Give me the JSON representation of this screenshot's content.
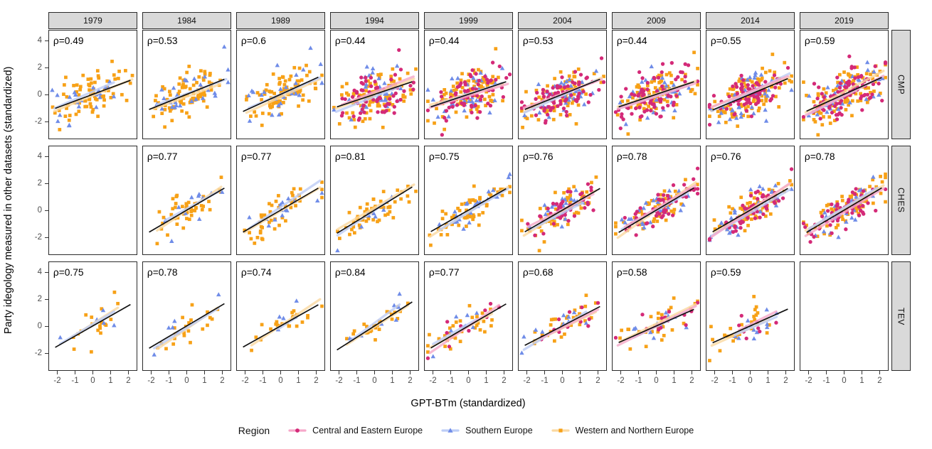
{
  "legend": {
    "title": "Region"
  },
  "chart_data": {
    "type": "scatter",
    "x_label": "GPT-BTm (standardized)",
    "y_label": "Party idegology measured in other datasets (standardized)",
    "x_ticks": [
      -2,
      -1,
      0,
      1,
      2
    ],
    "y_ticks": [
      4,
      2,
      0,
      -2
    ],
    "x_domain": [
      -2.5,
      2.5
    ],
    "y_domain": [
      -3.37,
      4.79
    ],
    "grid": "off",
    "facet_cols": [
      "1979",
      "1984",
      "1989",
      "1994",
      "1999",
      "2004",
      "2009",
      "2014",
      "2019"
    ],
    "facet_rows": [
      "CMP",
      "CHES",
      "TEV"
    ],
    "colors": {
      "fit_line": "#111111",
      "strip_bg": "#d9d9d9",
      "panel_border": "#2b2b2b",
      "tick_text": "#4d4d4d"
    },
    "regions": [
      {
        "id": "cee",
        "label": "Central and Eastern Europe",
        "shape": "circle",
        "color": "#d42a78",
        "light": "#f6a8c9"
      },
      {
        "id": "se",
        "label": "Southern Europe",
        "shape": "triangle",
        "color": "#6f8ce8",
        "light": "#bdcdf6"
      },
      {
        "id": "wne",
        "label": "Western and Northern Europe",
        "shape": "square",
        "color": "#f7a117",
        "light": "#fbd9a1"
      }
    ],
    "panels": [
      {
        "row": "CMP",
        "col": "1979",
        "rho": 0.49,
        "rho_label": "ρ=0.49",
        "n": {
          "cee": 0,
          "se": 22,
          "wne": 78
        }
      },
      {
        "row": "CMP",
        "col": "1984",
        "rho": 0.53,
        "rho_label": "ρ=0.53",
        "n": {
          "cee": 0,
          "se": 26,
          "wne": 88
        }
      },
      {
        "row": "CMP",
        "col": "1989",
        "rho": 0.6,
        "rho_label": "ρ=0.6",
        "n": {
          "cee": 0,
          "se": 26,
          "wne": 86
        }
      },
      {
        "row": "CMP",
        "col": "1994",
        "rho": 0.44,
        "rho_label": "ρ=0.44",
        "n": {
          "cee": 68,
          "se": 36,
          "wne": 96
        }
      },
      {
        "row": "CMP",
        "col": "1999",
        "rho": 0.44,
        "rho_label": "ρ=0.44",
        "n": {
          "cee": 74,
          "se": 40,
          "wne": 96
        }
      },
      {
        "row": "CMP",
        "col": "2004",
        "rho": 0.53,
        "rho_label": "ρ=0.53",
        "n": {
          "cee": 70,
          "se": 36,
          "wne": 88
        }
      },
      {
        "row": "CMP",
        "col": "2009",
        "rho": 0.44,
        "rho_label": "ρ=0.44",
        "n": {
          "cee": 76,
          "se": 36,
          "wne": 92
        }
      },
      {
        "row": "CMP",
        "col": "2014",
        "rho": 0.55,
        "rho_label": "ρ=0.55",
        "n": {
          "cee": 80,
          "se": 40,
          "wne": 100
        }
      },
      {
        "row": "CMP",
        "col": "2019",
        "rho": 0.59,
        "rho_label": "ρ=0.59",
        "n": {
          "cee": 86,
          "se": 44,
          "wne": 104
        }
      },
      {
        "row": "CHES",
        "col": "1979",
        "empty": true
      },
      {
        "row": "CHES",
        "col": "1984",
        "rho": 0.77,
        "rho_label": "ρ=0.77",
        "n": {
          "cee": 0,
          "se": 12,
          "wne": 46
        }
      },
      {
        "row": "CHES",
        "col": "1989",
        "rho": 0.77,
        "rho_label": "ρ=0.77",
        "n": {
          "cee": 0,
          "se": 14,
          "wne": 48
        }
      },
      {
        "row": "CHES",
        "col": "1994",
        "rho": 0.81,
        "rho_label": "ρ=0.81",
        "n": {
          "cee": 0,
          "se": 8,
          "wne": 54
        }
      },
      {
        "row": "CHES",
        "col": "1999",
        "rho": 0.75,
        "rho_label": "ρ=0.75",
        "n": {
          "cee": 0,
          "se": 26,
          "wne": 60
        }
      },
      {
        "row": "CHES",
        "col": "2004",
        "rho": 0.76,
        "rho_label": "ρ=0.76",
        "n": {
          "cee": 44,
          "se": 26,
          "wne": 62
        }
      },
      {
        "row": "CHES",
        "col": "2009",
        "rho": 0.78,
        "rho_label": "ρ=0.78",
        "n": {
          "cee": 54,
          "se": 30,
          "wne": 66
        }
      },
      {
        "row": "CHES",
        "col": "2014",
        "rho": 0.76,
        "rho_label": "ρ=0.76",
        "n": {
          "cee": 56,
          "se": 30,
          "wne": 70
        }
      },
      {
        "row": "CHES",
        "col": "2019",
        "rho": 0.78,
        "rho_label": "ρ=0.78",
        "n": {
          "cee": 60,
          "se": 34,
          "wne": 76
        }
      },
      {
        "row": "TEV",
        "col": "1979",
        "rho": 0.75,
        "rho_label": "ρ=0.75",
        "n": {
          "cee": 0,
          "se": 5,
          "wne": 19
        }
      },
      {
        "row": "TEV",
        "col": "1984",
        "rho": 0.78,
        "rho_label": "ρ=0.78",
        "n": {
          "cee": 0,
          "se": 6,
          "wne": 22
        }
      },
      {
        "row": "TEV",
        "col": "1989",
        "rho": 0.74,
        "rho_label": "ρ=0.74",
        "n": {
          "cee": 0,
          "se": 5,
          "wne": 24
        }
      },
      {
        "row": "TEV",
        "col": "1994",
        "rho": 0.84,
        "rho_label": "ρ=0.84",
        "n": {
          "cee": 0,
          "se": 8,
          "wne": 26
        }
      },
      {
        "row": "TEV",
        "col": "1999",
        "rho": 0.77,
        "rho_label": "ρ=0.77",
        "n": {
          "cee": 10,
          "se": 8,
          "wne": 30
        }
      },
      {
        "row": "TEV",
        "col": "2004",
        "rho": 0.68,
        "rho_label": "ρ=0.68",
        "n": {
          "cee": 12,
          "se": 10,
          "wne": 32
        }
      },
      {
        "row": "TEV",
        "col": "2009",
        "rho": 0.58,
        "rho_label": "ρ=0.58",
        "n": {
          "cee": 14,
          "se": 10,
          "wne": 34
        }
      },
      {
        "row": "TEV",
        "col": "2014",
        "rho": 0.59,
        "rho_label": "ρ=0.59",
        "n": {
          "cee": 8,
          "se": 12,
          "wne": 26
        }
      },
      {
        "row": "TEV",
        "col": "2019",
        "empty": true
      }
    ]
  }
}
